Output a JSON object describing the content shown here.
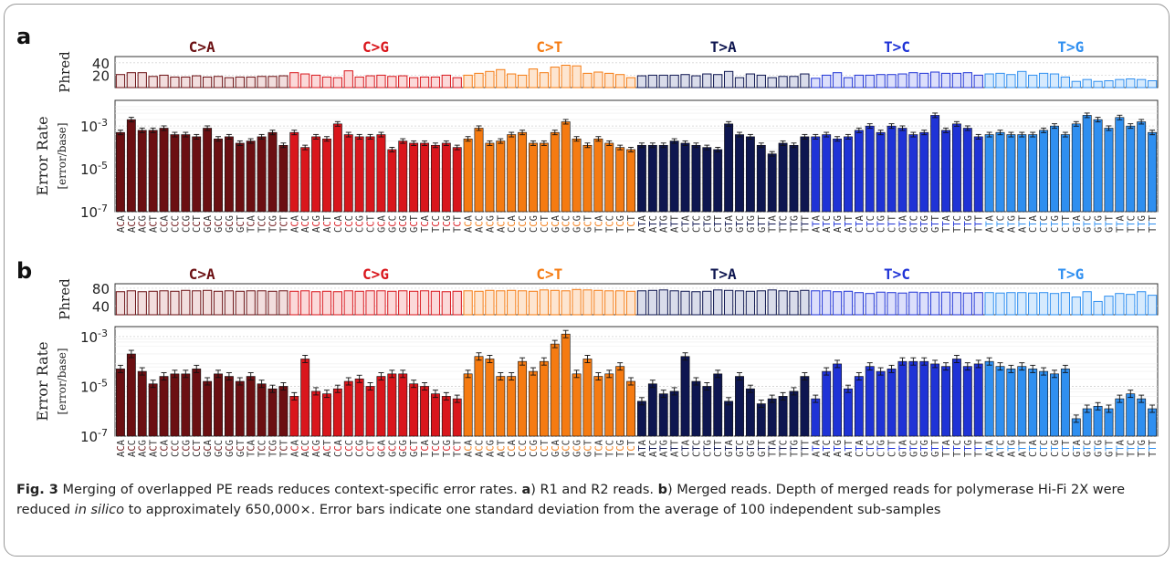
{
  "chart_data": [
    {
      "panel": "a",
      "type": "bar",
      "phred": {
        "ylabel": "Phred",
        "yticks": [
          "20",
          "40"
        ],
        "ylim": [
          0,
          50
        ],
        "values": [
          [
            21,
            24,
            24,
            18,
            20,
            17,
            17,
            19,
            17,
            18,
            16,
            17,
            17,
            18,
            18,
            19,
            24,
            22,
            20,
            17,
            16,
            27,
            17,
            19,
            20,
            18,
            19,
            16,
            17,
            17,
            20,
            16
          ],
          [
            20,
            23,
            26,
            29,
            22,
            20,
            30,
            24,
            33,
            36,
            35,
            23,
            25,
            23,
            21,
            16
          ],
          [
            19,
            20,
            20,
            20,
            21,
            19,
            22,
            21,
            26,
            16,
            22,
            20,
            16,
            18,
            18,
            22,
            15,
            20,
            24,
            16
          ],
          [
            20,
            20,
            21,
            21,
            22,
            24,
            23,
            25,
            23,
            23,
            24,
            20,
            22,
            23,
            21,
            26,
            20,
            23,
            22,
            17
          ],
          [
            10,
            13,
            10,
            11,
            13,
            14,
            13,
            11,
            14,
            15,
            12,
            16,
            17,
            14,
            11,
            12,
            13,
            10,
            12,
            14,
            15,
            11,
            12,
            13,
            14,
            12,
            11,
            15,
            10,
            13,
            14,
            15,
            12,
            11,
            14,
            16
          ]
        ]
      },
      "error": {
        "ylabel": "Error Rate",
        "ylabel_units": "[error/base]",
        "yticks": [
          "10-7",
          "10-5",
          "10-3"
        ],
        "ylim_log10": [
          -7,
          -1.8
        ],
        "values_log10": [
          [
            -3.3,
            -2.7,
            -3.2,
            -3.2,
            -3.1,
            -3.4,
            -3.4,
            -3.5,
            -3.1,
            -3.6,
            -3.5,
            -3.8,
            -3.7,
            -3.5,
            -3.3,
            -3.9,
            -3.3,
            -4.0,
            -3.5,
            -3.6,
            -2.9,
            -3.4,
            -3.5,
            -3.5,
            -3.4,
            -4.1,
            -3.7,
            -3.8,
            -3.8,
            -3.9,
            -3.8,
            -4.0
          ],
          [
            -3.6,
            -3.1,
            -3.8,
            -3.7,
            -3.4,
            -3.3,
            -3.8,
            -3.8,
            -3.3,
            -2.8,
            -3.6,
            -3.9,
            -3.6,
            -3.8,
            -4.0,
            -4.1
          ],
          [
            -3.9,
            -3.9,
            -3.9,
            -3.7,
            -3.8,
            -3.9,
            -4.0,
            -4.1,
            -2.9,
            -3.4,
            -3.5,
            -3.9,
            -4.3,
            -3.8,
            -3.9,
            -3.5,
            -3.5,
            -3.4,
            -3.6,
            -3.5
          ],
          [
            -3.2,
            -3.0,
            -3.3,
            -3.0,
            -3.1,
            -3.4,
            -3.3,
            -2.5,
            -3.2,
            -2.9,
            -3.1,
            -3.5,
            -3.4,
            -3.3,
            -3.4,
            -3.4,
            -3.4,
            -3.2,
            -3.0,
            -3.4
          ],
          [
            -2.9,
            -2.5,
            -2.7,
            -3.1,
            -2.6,
            -3.0,
            -2.8,
            -3.3,
            -2.6,
            -3.0,
            -2.9,
            -3.1,
            -3.3,
            -3.2,
            -3.4,
            -3.0,
            -3.1,
            -2.7,
            -1.8,
            -2.9,
            -3.2,
            -3.0,
            -2.8,
            -2.5,
            -3.1,
            -3.3,
            -3.0,
            -2.6,
            -2.9,
            -2.7,
            -3.1,
            -3.5,
            -3.0,
            -2.9,
            -2.6,
            -2.5
          ]
        ]
      }
    },
    {
      "panel": "b",
      "type": "bar",
      "phred": {
        "ylabel": "Phred",
        "yticks": [
          "40",
          "80"
        ],
        "ylim": [
          20,
          90
        ],
        "values": [
          [
            72,
            74,
            72,
            73,
            74,
            73,
            75,
            74,
            75,
            73,
            74,
            73,
            74,
            74,
            73,
            74,
            73,
            74,
            72,
            73,
            72,
            74,
            73,
            74,
            74,
            73,
            74,
            73,
            74,
            73,
            72,
            73
          ],
          [
            74,
            73,
            75,
            74,
            75,
            74,
            73,
            76,
            75,
            74,
            77,
            76,
            75,
            74,
            74,
            73
          ],
          [
            74,
            75,
            76,
            74,
            73,
            72,
            73,
            76,
            75,
            74,
            73,
            74,
            76,
            74,
            73,
            75,
            74,
            74,
            72,
            73
          ],
          [
            70,
            68,
            71,
            70,
            69,
            71,
            70,
            71,
            71,
            70,
            69,
            70,
            70,
            69,
            70,
            70,
            69,
            70,
            68,
            70
          ],
          [
            60,
            72,
            50,
            62,
            68,
            66,
            72,
            64,
            70,
            60,
            73,
            30,
            66,
            58,
            70,
            64,
            68,
            72,
            62,
            70,
            64,
            66,
            72,
            60,
            68,
            70,
            58,
            72,
            64,
            70,
            66,
            62,
            72,
            68,
            70,
            60
          ]
        ]
      },
      "error": {
        "ylabel": "Error Rate",
        "ylabel_units": "[error/base]",
        "yticks": [
          "10-7",
          "10-5",
          "10-3"
        ],
        "ylim_log10": [
          -7,
          -2.6
        ],
        "values_log10": [
          [
            -4.3,
            -3.7,
            -4.4,
            -4.9,
            -4.6,
            -4.5,
            -4.5,
            -4.3,
            -4.8,
            -4.5,
            -4.6,
            -4.8,
            -4.6,
            -4.9,
            -5.1,
            -5.0,
            -5.4,
            -3.9,
            -5.2,
            -5.3,
            -5.1,
            -4.8,
            -4.7,
            -5.0,
            -4.6,
            -4.5,
            -4.5,
            -4.9,
            -5.0,
            -5.3,
            -5.4,
            -5.5
          ],
          [
            -4.5,
            -3.8,
            -3.9,
            -4.6,
            -4.6,
            -4.0,
            -4.4,
            -4.0,
            -3.3,
            -2.9,
            -4.5,
            -3.9,
            -4.6,
            -4.5,
            -4.2,
            -4.8
          ],
          [
            -5.6,
            -4.9,
            -5.3,
            -5.2,
            -3.8,
            -4.8,
            -5.0,
            -4.5,
            -5.6,
            -4.6,
            -5.1,
            -5.7,
            -5.5,
            -5.4,
            -5.2,
            -4.6,
            -5.5,
            -4.4,
            -4.1,
            -5.1
          ],
          [
            -4.6,
            -4.2,
            -4.4,
            -4.3,
            -4.0,
            -4.0,
            -4.0,
            -4.1,
            -4.2,
            -3.9,
            -4.2,
            -4.1,
            -4.0,
            -4.2,
            -4.3,
            -4.2,
            -4.3,
            -4.4,
            -4.5,
            -4.3
          ],
          [
            -6.3,
            -5.9,
            -5.8,
            -5.9,
            -5.5,
            -5.3,
            -5.5,
            -5.9,
            -5.4,
            -4.4,
            -5.8,
            -5.2,
            -5.1,
            -4.4,
            -5.7,
            -5.2,
            -4.4,
            -4.7,
            -5.0,
            -5.8,
            -5.4,
            -5.2,
            -5.5,
            -6.1,
            -4.6,
            -5.9,
            -4.8,
            -5.9,
            -6.2,
            -5.6,
            -5.1,
            -4.8,
            -5.5,
            -5.2,
            -5.7,
            -4.6
          ]
        ]
      }
    }
  ],
  "figure": {
    "panels": [
      {
        "label": "a",
        "mutations": [
          "C>A",
          "C>G",
          "C>T",
          "T>A",
          "T>C",
          "T>G"
        ]
      },
      {
        "label": "b",
        "mutations": [
          "C>A",
          "C>G",
          "C>T",
          "T>A",
          "T>C",
          "T>G"
        ]
      }
    ],
    "groups": [
      {
        "mutation": "C>A",
        "count": 16,
        "color": "#6b0f12",
        "light": "#f2dede"
      },
      {
        "mutation": "C>G",
        "count": 16,
        "color": "#d9161c",
        "light": "#fbd9d9"
      },
      {
        "mutation": "C>T",
        "count": 16,
        "color": "#f57b12",
        "light": "#fde5d0"
      },
      {
        "mutation": "T>A",
        "count": 16,
        "color": "#0e1650",
        "light": "#d9dcea"
      },
      {
        "mutation": "T>C",
        "count": 16,
        "color": "#1f33d6",
        "light": "#dcdffb"
      },
      {
        "mutation": "T>G",
        "count": 16,
        "color": "#2f8ff0",
        "light": "#d6eafd"
      }
    ],
    "contexts": [
      "ACA",
      "ACC",
      "ACG",
      "ACT",
      "CCA",
      "CCC",
      "CCG",
      "CCT",
      "GCA",
      "GCC",
      "GCG",
      "GCT",
      "TCA",
      "TCC",
      "TCG",
      "TCT",
      "ACA",
      "ACC",
      "ACG",
      "ACT",
      "CCA",
      "CCC",
      "CCG",
      "CCT",
      "GCA",
      "GCC",
      "GCG",
      "GCT",
      "TCA",
      "TCC",
      "TCG",
      "TCT",
      "ACA",
      "ACC",
      "ACG",
      "ACT",
      "CCA",
      "CCC",
      "CCG",
      "CCT",
      "GCA",
      "GCC",
      "GCG",
      "GCT",
      "TCA",
      "TCC",
      "TCG",
      "TCT",
      "ATA",
      "ATC",
      "ATG",
      "ATT",
      "CTA",
      "CTC",
      "CTG",
      "CTT",
      "GTA",
      "GTC",
      "GTG",
      "GTT",
      "TTA",
      "TTC",
      "TTG",
      "TTT",
      "ATA",
      "ATC",
      "ATG",
      "ATT",
      "CTA",
      "CTC",
      "CTG",
      "CTT",
      "GTA",
      "GTC",
      "GTG",
      "GTT",
      "TTA",
      "TTC",
      "TTG",
      "TTT",
      "ATA",
      "ATC",
      "ATG",
      "ATT",
      "CTA",
      "CTC",
      "CTG",
      "CTT",
      "GTA",
      "GTC",
      "GTG",
      "GTT",
      "TTA",
      "TTC",
      "TTG",
      "TTT"
    ]
  },
  "caption": {
    "label": "Fig. 3",
    "text_1": " Merging of overlapped PE reads reduces context-specific error rates. ",
    "a": "a",
    "text_2": ") R1 and R2 reads. ",
    "b": "b",
    "text_3": ") Merged reads. Depth of merged reads for polymerase Hi-Fi 2X were reduced ",
    "italic": "in silico",
    "text_4": " to approximately 650,000×. Error bars indicate one standard deviation from the average of 100 independent sub-samples"
  }
}
